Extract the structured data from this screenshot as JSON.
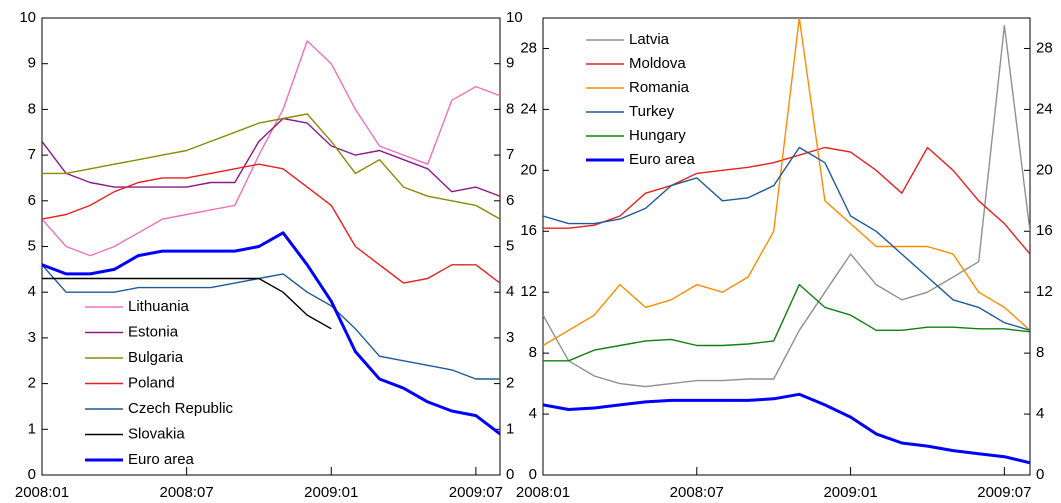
{
  "chart_data": [
    {
      "type": "line",
      "x": [
        0,
        1,
        2,
        3,
        4,
        5,
        6,
        7,
        8,
        9,
        10,
        11,
        12,
        13,
        14,
        15,
        16,
        17,
        18,
        19
      ],
      "xlim": [
        0,
        19
      ],
      "xticks": [
        {
          "value": 0,
          "label": "2008:01"
        },
        {
          "value": 6,
          "label": "2008:07"
        },
        {
          "value": 12,
          "label": "2009:01"
        },
        {
          "value": 18,
          "label": "2009:07"
        }
      ],
      "ylim": [
        0,
        10
      ],
      "yticks": [
        0,
        1,
        2,
        3,
        4,
        5,
        6,
        7,
        8,
        9,
        10
      ],
      "legend": "lower left",
      "series": [
        {
          "name": "Lithuania",
          "color": "#f070c0",
          "values": [
            5.6,
            5.0,
            4.8,
            5.0,
            5.3,
            5.6,
            5.7,
            5.8,
            5.9,
            7.0,
            8.0,
            9.5,
            9.0,
            8.0,
            7.2,
            7.0,
            6.8,
            8.2,
            8.5,
            8.3
          ]
        },
        {
          "name": "Estonia",
          "color": "#8b1a8b",
          "values": [
            7.3,
            6.6,
            6.4,
            6.3,
            6.3,
            6.3,
            6.3,
            6.4,
            6.4,
            7.3,
            7.8,
            7.7,
            7.2,
            7.0,
            7.1,
            6.9,
            6.7,
            6.2,
            6.3,
            6.1
          ]
        },
        {
          "name": "Bulgaria",
          "color": "#8b8b00",
          "values": [
            6.6,
            6.6,
            6.7,
            6.8,
            6.9,
            7.0,
            7.1,
            7.3,
            7.5,
            7.7,
            7.8,
            7.9,
            7.3,
            6.6,
            6.9,
            6.3,
            6.1,
            6.0,
            5.9,
            5.6
          ]
        },
        {
          "name": "Poland",
          "color": "#e82020",
          "values": [
            5.6,
            5.7,
            5.9,
            6.2,
            6.4,
            6.5,
            6.5,
            6.6,
            6.7,
            6.8,
            6.7,
            6.3,
            5.9,
            5.0,
            4.6,
            4.2,
            4.3,
            4.6,
            4.6,
            4.2
          ]
        },
        {
          "name": "Czech Republic",
          "color": "#1f5a99",
          "values": [
            4.6,
            4.0,
            4.0,
            4.0,
            4.1,
            4.1,
            4.1,
            4.1,
            4.2,
            4.3,
            4.4,
            4.0,
            3.7,
            3.2,
            2.6,
            2.5,
            2.4,
            2.3,
            2.1,
            2.1
          ]
        },
        {
          "name": "Slovakia",
          "color": "#000000",
          "values": [
            4.3,
            4.3,
            4.3,
            4.3,
            4.3,
            4.3,
            4.3,
            4.3,
            4.3,
            4.3,
            4.0,
            3.5,
            3.2,
            null,
            null,
            null,
            null,
            null,
            null,
            null
          ]
        },
        {
          "name": "Euro area",
          "color": "#0000ff",
          "line_width": 3,
          "values": [
            4.6,
            4.4,
            4.4,
            4.5,
            4.8,
            4.9,
            4.9,
            4.9,
            4.9,
            5.0,
            5.3,
            4.6,
            3.8,
            2.7,
            2.1,
            1.9,
            1.6,
            1.4,
            1.3,
            0.9
          ]
        }
      ]
    },
    {
      "type": "line",
      "x": [
        0,
        1,
        2,
        3,
        4,
        5,
        6,
        7,
        8,
        9,
        10,
        11,
        12,
        13,
        14,
        15,
        16,
        17,
        18,
        19
      ],
      "xlim": [
        0,
        19
      ],
      "xticks": [
        {
          "value": 0,
          "label": "2008:01"
        },
        {
          "value": 6,
          "label": "2008:07"
        },
        {
          "value": 12,
          "label": "2009:01"
        },
        {
          "value": 18,
          "label": "2009:07"
        }
      ],
      "ylim": [
        0,
        30
      ],
      "yticks": [
        0,
        4,
        8,
        12,
        16,
        20,
        24,
        28
      ],
      "legend": "upper left",
      "series": [
        {
          "name": "Latvia",
          "color": "#909090",
          "values": [
            10.5,
            7.5,
            6.5,
            6.0,
            5.8,
            6.0,
            6.2,
            6.2,
            6.3,
            6.3,
            9.5,
            12,
            14.5,
            12.5,
            11.5,
            12,
            13,
            14,
            29.5,
            16
          ]
        },
        {
          "name": "Moldova",
          "color": "#e82020",
          "values": [
            16.2,
            16.2,
            16.4,
            17,
            18.5,
            19,
            19.8,
            20,
            20.2,
            20.5,
            21,
            21.5,
            21.2,
            20,
            18.5,
            21.5,
            20,
            18,
            16.5,
            14.5
          ]
        },
        {
          "name": "Romania",
          "color": "#ff8c00",
          "values": [
            8.5,
            9.5,
            10.5,
            12.5,
            11,
            11.5,
            12.5,
            12,
            13,
            16,
            30,
            18,
            16.5,
            15,
            15,
            15,
            14.5,
            12,
            11,
            9.5
          ]
        },
        {
          "name": "Turkey",
          "color": "#1f5a99",
          "values": [
            17,
            16.5,
            16.5,
            16.8,
            17.5,
            19,
            19.5,
            18,
            18.2,
            19,
            21.5,
            20.5,
            17,
            16,
            14.5,
            13,
            11.5,
            11,
            10,
            9.5
          ]
        },
        {
          "name": "Hungary",
          "color": "#108010",
          "values": [
            7.5,
            7.5,
            8.2,
            8.5,
            8.8,
            8.9,
            8.5,
            8.5,
            8.6,
            8.8,
            12.5,
            11,
            10.5,
            9.5,
            9.5,
            9.7,
            9.7,
            9.6,
            9.6,
            9.4
          ]
        },
        {
          "name": "Euro area",
          "color": "#0000ff",
          "line_width": 3,
          "values": [
            4.6,
            4.3,
            4.4,
            4.6,
            4.8,
            4.9,
            4.9,
            4.9,
            4.9,
            5.0,
            5.3,
            4.6,
            3.8,
            2.7,
            2.1,
            1.9,
            1.6,
            1.4,
            1.2,
            0.8
          ]
        }
      ]
    }
  ]
}
